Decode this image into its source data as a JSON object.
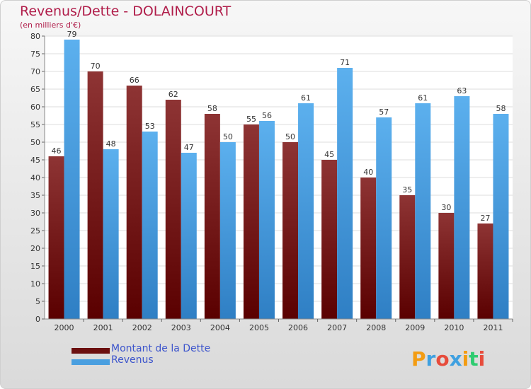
{
  "chart_data": {
    "type": "bar",
    "title": "Revenus/Dette - DOLAINCOURT",
    "subtitle": "(en milliers d'€)",
    "categories": [
      "2000",
      "2001",
      "2002",
      "2003",
      "2004",
      "2005",
      "2006",
      "2007",
      "2008",
      "2009",
      "2010",
      "2011"
    ],
    "series": [
      {
        "name": "Montant de la Dette",
        "color": "#7a1f1f",
        "values": [
          46,
          70,
          66,
          62,
          58,
          55,
          50,
          45,
          40,
          35,
          30,
          27
        ]
      },
      {
        "name": "Revenus",
        "color": "#4a9fe0",
        "values": [
          79,
          48,
          53,
          47,
          50,
          56,
          61,
          71,
          57,
          61,
          63,
          58
        ]
      }
    ],
    "ylim": [
      0,
      80
    ],
    "yticks": [
      0,
      5,
      10,
      15,
      20,
      25,
      30,
      35,
      40,
      45,
      50,
      55,
      60,
      65,
      70,
      75,
      80
    ],
    "grid": true,
    "legend": "bottom-left"
  },
  "logo": {
    "text": "Proxiti"
  }
}
